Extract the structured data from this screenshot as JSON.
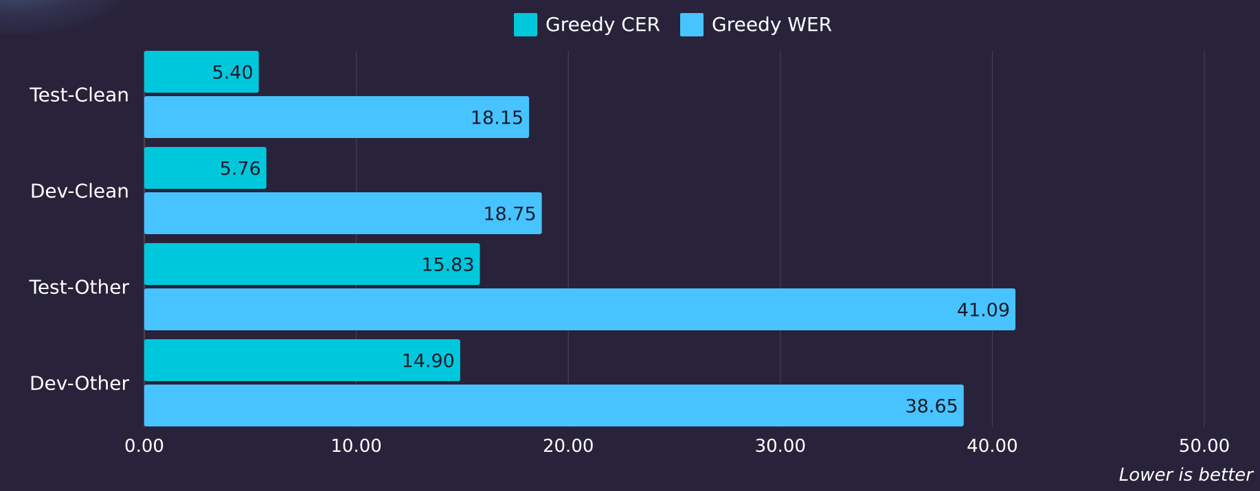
{
  "chart_data": {
    "type": "bar",
    "orientation": "horizontal",
    "categories": [
      "Test-Clean",
      "Dev-Clean",
      "Test-Other",
      "Dev-Other"
    ],
    "series": [
      {
        "name": "Greedy CER",
        "color": "#00c8dc",
        "values": [
          5.4,
          5.76,
          15.83,
          14.9
        ],
        "labels": [
          "5.40",
          "5.76",
          "15.83",
          "14.90"
        ]
      },
      {
        "name": "Greedy WER",
        "color": "#47c4ff",
        "values": [
          18.15,
          18.75,
          41.09,
          38.65
        ],
        "labels": [
          "18.15",
          "18.75",
          "41.09",
          "38.65"
        ]
      }
    ],
    "xlim": [
      0,
      50
    ],
    "xticks": [
      0,
      10,
      20,
      30,
      40,
      50
    ],
    "xtick_labels": [
      "0.00",
      "10.00",
      "20.00",
      "30.00",
      "40.00",
      "50.00"
    ],
    "grid": "vertical",
    "legend": "top-center",
    "note": "Lower is better",
    "colors": {
      "background": "#28233a",
      "grid": "#4a4560",
      "text": "#ffffff",
      "value_text": "#1a1a2a"
    }
  }
}
